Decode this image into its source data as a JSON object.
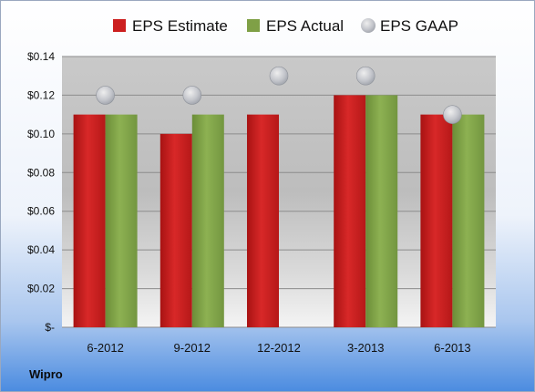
{
  "company": "Wipro",
  "chart_data": {
    "type": "bar",
    "categories": [
      "6-2012",
      "9-2012",
      "12-2012",
      "3-2013",
      "6-2013"
    ],
    "series": [
      {
        "name": "EPS Estimate",
        "kind": "bar",
        "color": "#cc1f1f",
        "values": [
          0.11,
          0.1,
          0.11,
          0.12,
          0.11
        ]
      },
      {
        "name": "EPS Actual",
        "kind": "bar",
        "color": "#7fa046",
        "values": [
          0.11,
          0.11,
          null,
          0.12,
          0.11
        ]
      },
      {
        "name": "EPS GAAP",
        "kind": "marker",
        "color": "#b8bcc4",
        "values": [
          0.12,
          0.12,
          0.13,
          0.13,
          0.11
        ]
      }
    ],
    "y_ticks": [
      {
        "value": 0,
        "label": "$-"
      },
      {
        "value": 0.02,
        "label": "$0.02"
      },
      {
        "value": 0.04,
        "label": "$0.04"
      },
      {
        "value": 0.06,
        "label": "$0.06"
      },
      {
        "value": 0.08,
        "label": "$0.08"
      },
      {
        "value": 0.1,
        "label": "$0.10"
      },
      {
        "value": 0.12,
        "label": "$0.12"
      },
      {
        "value": 0.14,
        "label": "$0.14"
      }
    ],
    "ylim": [
      0,
      0.14
    ],
    "grid": true,
    "legend": "top"
  }
}
